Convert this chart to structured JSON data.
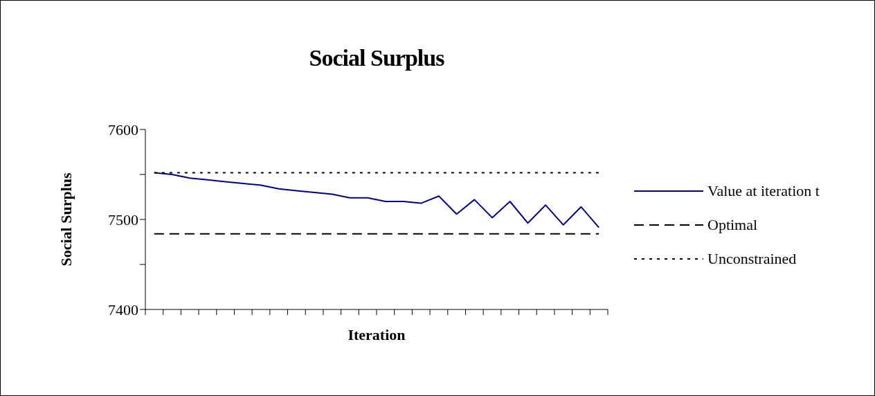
{
  "chart_data": {
    "type": "line",
    "title": "Social Surplus",
    "xlabel": "Iteration",
    "ylabel": "Social Surplus",
    "categories": [
      null,
      null,
      null,
      null,
      null,
      null,
      null,
      null,
      null,
      null,
      null,
      null,
      null,
      null,
      null,
      null,
      null,
      null,
      null,
      null,
      null,
      null,
      null,
      null,
      null,
      null
    ],
    "series": [
      {
        "name": "Value at iteration t",
        "color": "#000080",
        "line_style": "solid",
        "values": [
          7552,
          7550,
          7546,
          7544,
          7542,
          7540,
          7538,
          7534,
          7532,
          7530,
          7528,
          7524,
          7524,
          7520,
          7520,
          7518,
          7526,
          7506,
          7522,
          7502,
          7520,
          7496,
          7516,
          7494,
          7514,
          7491
        ]
      },
      {
        "name": "Optimal",
        "color": "#000000",
        "line_style": "dashed",
        "values": [
          7484,
          7484,
          7484,
          7484,
          7484,
          7484,
          7484,
          7484,
          7484,
          7484,
          7484,
          7484,
          7484,
          7484,
          7484,
          7484,
          7484,
          7484,
          7484,
          7484,
          7484,
          7484,
          7484,
          7484,
          7484,
          7484
        ]
      },
      {
        "name": "Unconstrained",
        "color": "#000000",
        "line_style": "dotted",
        "values": [
          7552,
          7552,
          7552,
          7552,
          7552,
          7552,
          7552,
          7552,
          7552,
          7552,
          7552,
          7552,
          7552,
          7552,
          7552,
          7552,
          7552,
          7552,
          7552,
          7552,
          7552,
          7552,
          7552,
          7552,
          7552,
          7552
        ]
      }
    ],
    "ylim": [
      7400,
      7600
    ],
    "yticks": [
      7400,
      {
        "value": 7450,
        "label": null
      },
      7500,
      {
        "value": 7550,
        "label": null
      },
      7600
    ],
    "grid": false,
    "legend": "right"
  }
}
